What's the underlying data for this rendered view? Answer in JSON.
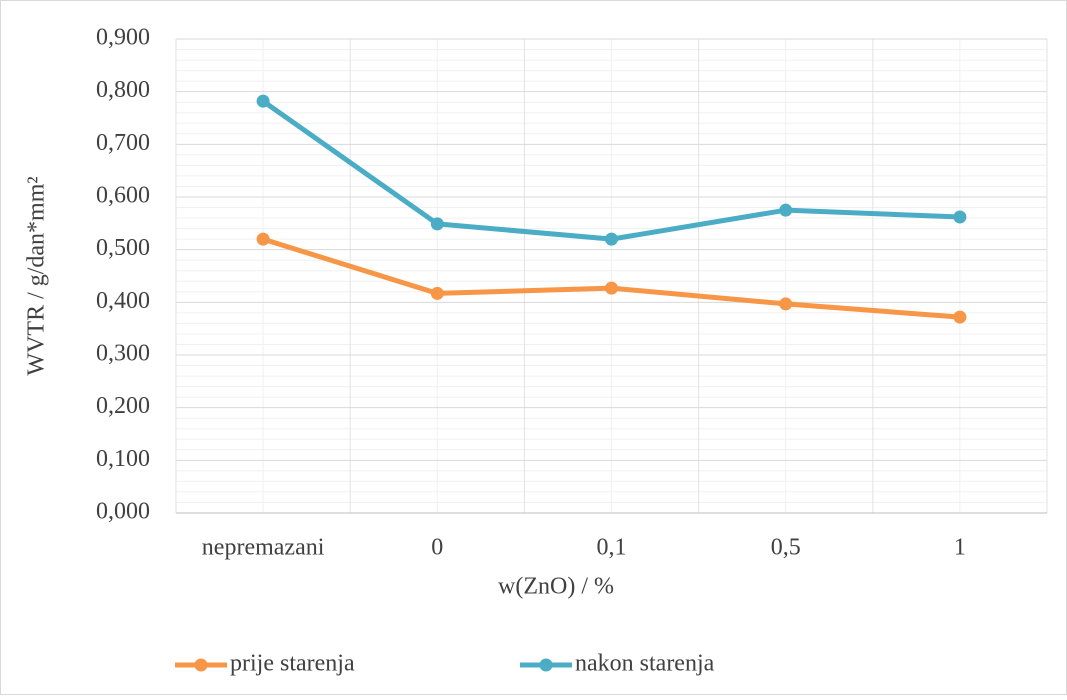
{
  "chart_data": {
    "type": "line",
    "x_label": "w(ZnO) / %",
    "y_label": "WVTR / g/dan*mm²",
    "categories": [
      "nepremazani",
      "0",
      "0,1",
      "0,5",
      "1"
    ],
    "series": [
      {
        "name": "prije starenja",
        "color": "#f79646",
        "values": [
          0.52,
          0.417,
          0.427,
          0.397,
          0.372
        ]
      },
      {
        "name": "nakon starenja",
        "color": "#4bacc6",
        "values": [
          0.782,
          0.549,
          0.52,
          0.575,
          0.562
        ]
      }
    ],
    "ylim": [
      0,
      0.9
    ],
    "yticks": [
      {
        "value": 0,
        "label": "0,000"
      },
      {
        "value": 0.1,
        "label": "0,100"
      },
      {
        "value": 0.2,
        "label": "0,200"
      },
      {
        "value": 0.3,
        "label": "0,300"
      },
      {
        "value": 0.4,
        "label": "0,400"
      },
      {
        "value": 0.5,
        "label": "0,500"
      },
      {
        "value": 0.6,
        "label": "0,600"
      },
      {
        "value": 0.7,
        "label": "0,700"
      },
      {
        "value": 0.8,
        "label": "0,800"
      },
      {
        "value": 0.9,
        "label": "0,900"
      }
    ],
    "grid": true,
    "legend": "bottom"
  }
}
